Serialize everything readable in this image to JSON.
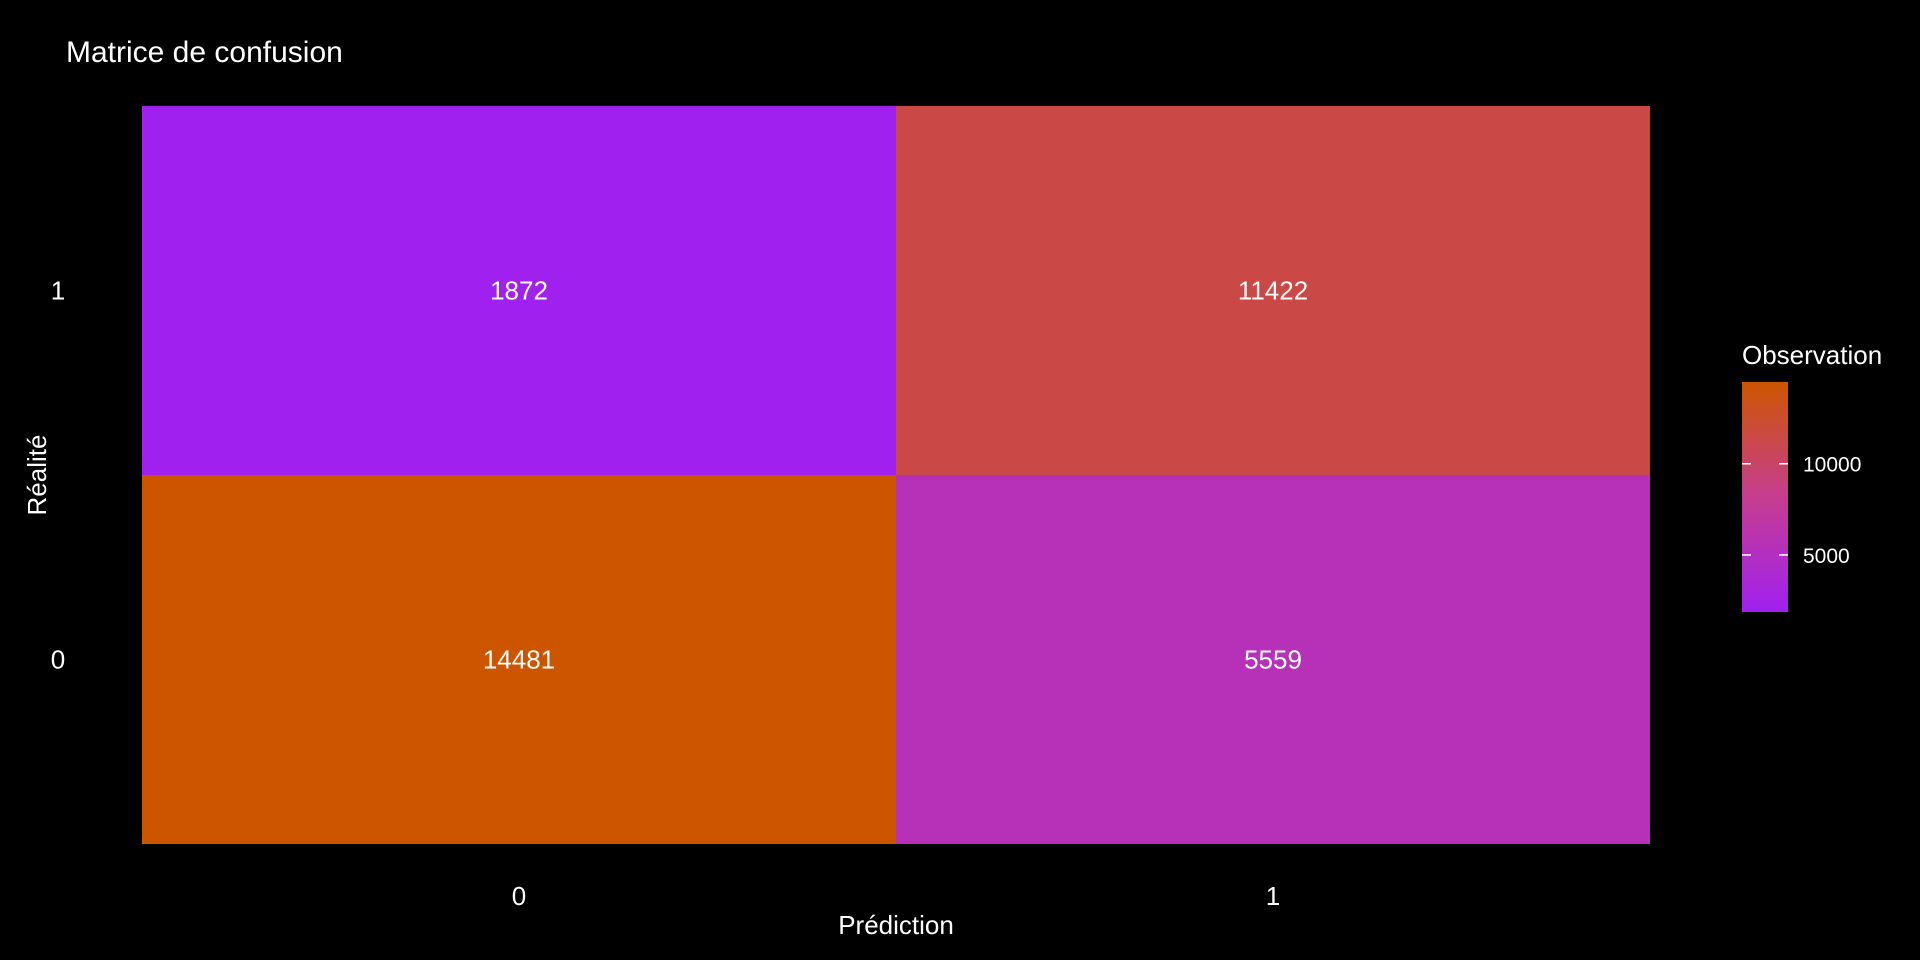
{
  "chart_data": {
    "type": "heatmap",
    "title": "Matrice de confusion",
    "xlabel": "Prédiction",
    "ylabel": "Réalité",
    "x_categories": [
      "0",
      "1"
    ],
    "y_categories": [
      "0",
      "1"
    ],
    "cells": [
      {
        "x": "0",
        "y": "1",
        "value": 1872,
        "label": "1872"
      },
      {
        "x": "1",
        "y": "1",
        "value": 11422,
        "label": "11422"
      },
      {
        "x": "0",
        "y": "0",
        "value": 14481,
        "label": "14481"
      },
      {
        "x": "1",
        "y": "0",
        "value": 5559,
        "label": "5559"
      }
    ],
    "legend": {
      "title": "Observation",
      "ticks": [
        {
          "value": 5000,
          "label": "5000"
        },
        {
          "value": 10000,
          "label": "10000"
        }
      ],
      "range": [
        1872,
        14481
      ],
      "low_color": "#A020F0",
      "high_color": "#CD5500",
      "placement": "right"
    },
    "grid": false
  }
}
